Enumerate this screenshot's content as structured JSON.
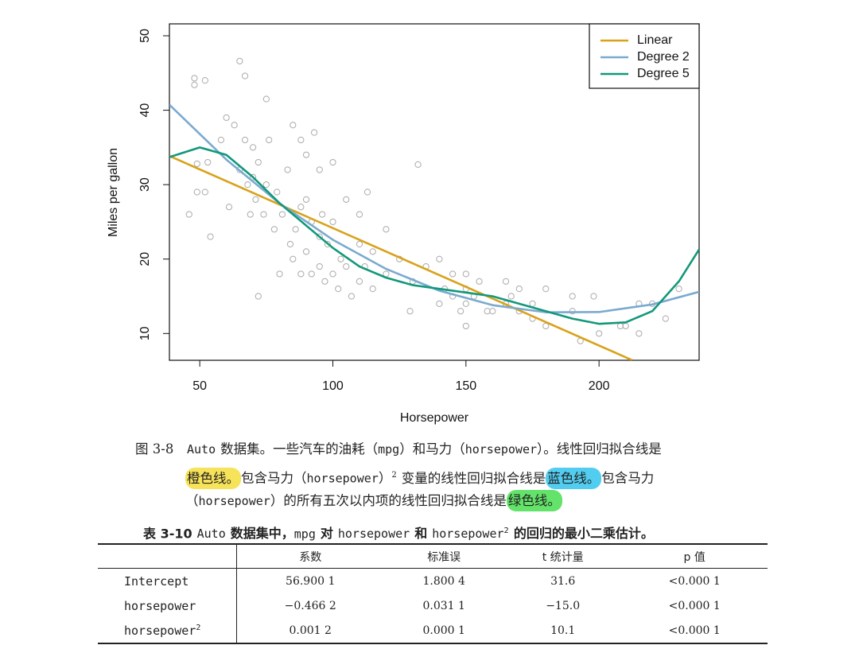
{
  "chart_data": {
    "type": "scatter",
    "x_label": "Horsepower",
    "y_label": "Miles per gallon",
    "xlim": [
      38.6,
      237.6
    ],
    "ylim": [
      6.4,
      51.6
    ],
    "xticks": [
      50,
      100,
      150,
      200
    ],
    "yticks": [
      10,
      20,
      30,
      40,
      50
    ],
    "legend": "top-right",
    "points": {
      "color": "#aaaaaa",
      "x": [
        46,
        48,
        48,
        49,
        49,
        52,
        52,
        53,
        54,
        58,
        60,
        61,
        63,
        65,
        65,
        67,
        67,
        68,
        69,
        70,
        70,
        71,
        72,
        72,
        74,
        75,
        75,
        76,
        78,
        79,
        80,
        81,
        83,
        84,
        85,
        85,
        86,
        88,
        88,
        88,
        90,
        90,
        90,
        92,
        92,
        93,
        95,
        95,
        95,
        96,
        97,
        98,
        100,
        100,
        100,
        102,
        103,
        105,
        105,
        107,
        110,
        110,
        110,
        112,
        113,
        115,
        115,
        120,
        120,
        125,
        129,
        130,
        132,
        135,
        140,
        140,
        142,
        145,
        145,
        148,
        150,
        150,
        150,
        150,
        153,
        155,
        158,
        160,
        165,
        165,
        167,
        170,
        170,
        175,
        175,
        180,
        180,
        190,
        190,
        193,
        198,
        200,
        208,
        210,
        215,
        215,
        220,
        225,
        230
      ],
      "values": [
        26,
        44.3,
        43.4,
        29,
        32.8,
        44,
        29,
        33,
        23,
        36,
        39,
        27,
        38,
        46.6,
        32,
        44.6,
        36,
        30,
        26,
        35,
        31,
        28,
        15,
        33,
        26,
        41.5,
        30,
        36,
        24,
        29,
        18,
        26,
        32,
        22,
        38,
        20,
        24,
        36,
        27,
        18,
        28,
        21,
        34,
        25,
        18,
        37,
        32,
        23,
        19,
        26,
        17,
        22,
        33,
        25,
        18,
        16,
        20,
        28,
        19,
        15,
        26,
        22,
        17,
        19,
        29,
        21,
        16,
        24,
        18,
        20,
        13,
        17,
        32.7,
        19,
        14,
        20,
        16,
        15,
        18,
        13,
        14,
        18,
        16,
        11,
        15,
        17,
        13,
        13,
        17,
        14,
        15,
        16,
        13,
        14,
        12,
        16,
        11,
        15,
        13,
        9,
        15,
        10,
        11,
        11,
        14,
        10,
        14,
        12,
        16
      ]
    },
    "series": [
      {
        "name": "Linear",
        "color": "#d9a21b",
        "x": [
          38.6,
          212.5
        ],
        "values": [
          33.85,
          6.41
        ]
      },
      {
        "name": "Degree 2",
        "color": "#7aaad0",
        "x": [
          38.6,
          60,
          80,
          100,
          120,
          140,
          160,
          180,
          200,
          220,
          237.6
        ],
        "values": [
          40.73,
          33.36,
          27.48,
          22.59,
          18.68,
          15.75,
          13.81,
          12.85,
          12.88,
          13.9,
          15.6
        ]
      },
      {
        "name": "Degree 5",
        "color": "#13987a",
        "x": [
          38.6,
          50,
          60,
          70,
          80,
          90,
          100,
          110,
          120,
          130,
          140,
          150,
          160,
          170,
          180,
          190,
          200,
          210,
          220,
          230,
          237.6
        ],
        "values": [
          33.7,
          35,
          34,
          31,
          27.5,
          24.5,
          21.5,
          19,
          17.5,
          16.5,
          16,
          15.5,
          15,
          14,
          13,
          12,
          11.3,
          11.5,
          13,
          17,
          21.3
        ]
      }
    ]
  },
  "caption": {
    "label": "图 3-8",
    "lines": [
      [
        "Auto",
        "数据集。一些汽车的油耗（",
        "mpg",
        "）和马力（",
        "horsepower",
        "）。线性回归拟合线是"
      ],
      [
        "橙色线。",
        "包含马力（",
        "horsepower",
        "）",
        "2",
        "变量的线性回归拟合线是",
        "蓝色线。",
        "包含马力"
      ],
      [
        "（",
        "horsepower",
        "）的所有五次以内项的线性回归拟合线是",
        "绿色线。"
      ]
    ]
  },
  "table": {
    "label": "表 3-10",
    "title": [
      "Auto",
      "数据集中，",
      "mpg",
      "对",
      "horsepower",
      "和",
      "horsepower",
      "2",
      "的回归的最小二乘估计。"
    ],
    "header": [
      "系数",
      "标准误",
      "t 统计量",
      "p 值"
    ],
    "rows": [
      {
        "name": "Intercept",
        "cells": [
          "56.900 1",
          "1.800 4",
          "31.6",
          "<0.000 1"
        ]
      },
      {
        "name": "horsepower",
        "cells": [
          "−0.466 2",
          "0.031 1",
          "−15.0",
          "<0.000 1"
        ]
      },
      {
        "name": "horsepower",
        "superscript": "2",
        "cells": [
          "0.001 2",
          "0.000 1",
          "10.1",
          "<0.000 1"
        ]
      }
    ]
  }
}
